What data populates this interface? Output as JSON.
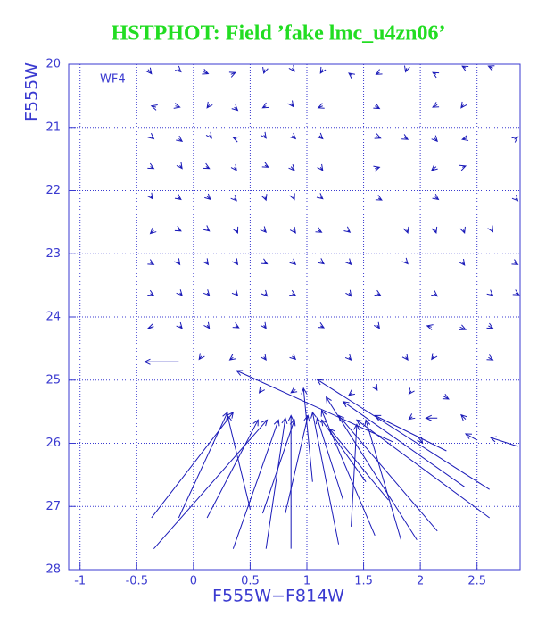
{
  "chart_data": {
    "type": "quiver",
    "title": "HSTPHOT: Field ’fake lmc_u4zn06’",
    "annotation": "WF4",
    "x_label": "F555W−F814W",
    "y_label": "F555W",
    "color": "#1a1ab8",
    "axis_color": "#3a3ad0",
    "title_color": "#22dd22",
    "grid": true,
    "y_inverted": true,
    "xlim": [
      -1.1,
      2.88
    ],
    "ylim": [
      20,
      28
    ],
    "xticks": [
      -1,
      -0.5,
      0,
      0.5,
      1,
      1.5,
      2,
      2.5
    ],
    "yticks": [
      20,
      21,
      22,
      23,
      24,
      25,
      26,
      27,
      28
    ],
    "vectors": [
      [
        -0.37,
        27.18,
        0.35,
        25.51
      ],
      [
        -0.35,
        27.67,
        0.65,
        25.63
      ],
      [
        -0.13,
        27.18,
        0.3,
        25.51
      ],
      [
        0.12,
        27.18,
        0.57,
        25.63
      ],
      [
        0.35,
        27.67,
        0.75,
        25.63
      ],
      [
        0.64,
        27.67,
        0.81,
        25.6
      ],
      [
        0.86,
        27.67,
        0.86,
        25.56
      ],
      [
        0.61,
        27.11,
        0.89,
        25.63
      ],
      [
        0.81,
        27.11,
        1.01,
        25.56
      ],
      [
        1.05,
        26.61,
        0.97,
        25.13
      ],
      [
        1.28,
        27.6,
        1.05,
        25.51
      ],
      [
        1.6,
        27.46,
        1.13,
        25.48
      ],
      [
        1.97,
        27.53,
        1.17,
        25.27
      ],
      [
        2.15,
        27.39,
        1.28,
        25.56
      ],
      [
        2.61,
        27.18,
        1.44,
        25.63
      ],
      [
        2.61,
        26.73,
        1.09,
        24.99
      ],
      [
        2.39,
        26.69,
        1.32,
        25.34
      ],
      [
        2.23,
        26.12,
        1.6,
        25.56
      ],
      [
        2.86,
        26.05,
        2.62,
        25.91
      ],
      [
        1.76,
        25.98,
        0.38,
        24.85
      ],
      [
        1.72,
        26.9,
        1.2,
        25.77
      ],
      [
        1.52,
        26.61,
        1.13,
        25.63
      ],
      [
        1.32,
        26.9,
        1.09,
        25.6
      ],
      [
        1.83,
        27.53,
        1.52,
        25.63
      ],
      [
        1.39,
        27.32,
        1.44,
        25.7
      ],
      [
        -0.13,
        24.71,
        -0.43,
        24.71
      ],
      [
        0.5,
        27.04,
        0.3,
        25.56
      ],
      [
        2.5,
        25.95,
        2.4,
        25.85
      ],
      [
        2.15,
        25.6,
        2.05,
        25.6
      ],
      [
        2.4,
        25.62,
        2.36,
        25.55
      ],
      [
        -0.4,
        20.08,
        -0.37,
        20.15
      ],
      [
        -0.14,
        20.07,
        -0.11,
        20.12
      ],
      [
        0.09,
        20.12,
        0.13,
        20.15
      ],
      [
        0.33,
        20.16,
        0.37,
        20.13
      ],
      [
        0.63,
        20.08,
        0.62,
        20.14
      ],
      [
        0.87,
        20.06,
        0.89,
        20.11
      ],
      [
        1.14,
        20.08,
        1.12,
        20.14
      ],
      [
        1.4,
        20.18,
        1.37,
        20.14
      ],
      [
        1.64,
        20.13,
        1.61,
        20.16
      ],
      [
        1.88,
        20.06,
        1.87,
        20.12
      ],
      [
        2.14,
        20.16,
        2.11,
        20.13
      ],
      [
        2.4,
        20.06,
        2.37,
        20.03
      ],
      [
        2.64,
        20.06,
        2.6,
        20.03
      ],
      [
        -0.33,
        20.68,
        -0.37,
        20.66
      ],
      [
        -0.16,
        20.66,
        -0.12,
        20.68
      ],
      [
        0.14,
        20.64,
        0.12,
        20.69
      ],
      [
        0.36,
        20.68,
        0.39,
        20.73
      ],
      [
        0.64,
        20.66,
        0.61,
        20.69
      ],
      [
        0.86,
        20.62,
        0.88,
        20.67
      ],
      [
        1.14,
        20.66,
        1.1,
        20.69
      ],
      [
        1.6,
        20.66,
        1.64,
        20.7
      ],
      [
        2.15,
        20.64,
        2.11,
        20.68
      ],
      [
        2.38,
        20.64,
        2.36,
        20.69
      ],
      [
        -0.37,
        21.15,
        -0.35,
        21.18
      ],
      [
        -0.13,
        21.18,
        -0.1,
        21.22
      ],
      [
        0.14,
        21.12,
        0.16,
        21.17
      ],
      [
        0.38,
        21.18,
        0.35,
        21.16
      ],
      [
        0.62,
        21.12,
        0.64,
        21.17
      ],
      [
        0.87,
        21.13,
        0.9,
        21.18
      ],
      [
        1.11,
        21.13,
        1.14,
        21.18
      ],
      [
        1.61,
        21.14,
        1.65,
        21.17
      ],
      [
        1.86,
        21.16,
        1.89,
        21.19
      ],
      [
        2.12,
        21.16,
        2.15,
        21.22
      ],
      [
        2.41,
        21.17,
        2.37,
        21.19
      ],
      [
        2.83,
        21.19,
        2.86,
        21.15
      ],
      [
        -0.38,
        21.62,
        -0.35,
        21.65
      ],
      [
        -0.12,
        21.6,
        -0.1,
        21.65
      ],
      [
        0.11,
        21.62,
        0.14,
        21.65
      ],
      [
        0.36,
        21.63,
        0.38,
        21.68
      ],
      [
        0.63,
        21.6,
        0.66,
        21.63
      ],
      [
        0.86,
        21.62,
        0.89,
        21.68
      ],
      [
        1.12,
        21.63,
        1.14,
        21.68
      ],
      [
        1.6,
        21.65,
        1.64,
        21.63
      ],
      [
        2.14,
        21.62,
        2.1,
        21.68
      ],
      [
        2.37,
        21.63,
        2.4,
        21.61
      ],
      [
        -0.38,
        22.08,
        -0.36,
        22.13
      ],
      [
        -0.14,
        22.1,
        -0.11,
        22.14
      ],
      [
        0.12,
        22.09,
        0.15,
        22.14
      ],
      [
        0.36,
        22.12,
        0.38,
        22.16
      ],
      [
        0.63,
        22.1,
        0.64,
        22.15
      ],
      [
        0.88,
        22.1,
        0.89,
        22.14
      ],
      [
        1.12,
        22.1,
        1.14,
        22.13
      ],
      [
        1.63,
        22.12,
        1.66,
        22.15
      ],
      [
        2.13,
        22.1,
        2.16,
        22.14
      ],
      [
        2.84,
        22.12,
        2.86,
        22.16
      ],
      [
        -0.35,
        22.63,
        -0.38,
        22.68
      ],
      [
        -0.13,
        22.62,
        -0.11,
        22.64
      ],
      [
        0.12,
        22.61,
        0.14,
        22.64
      ],
      [
        0.38,
        22.63,
        0.39,
        22.67
      ],
      [
        0.62,
        22.62,
        0.64,
        22.66
      ],
      [
        0.88,
        22.62,
        0.9,
        22.67
      ],
      [
        1.1,
        22.63,
        1.13,
        22.66
      ],
      [
        1.36,
        22.63,
        1.38,
        22.66
      ],
      [
        1.88,
        22.62,
        1.89,
        22.67
      ],
      [
        2.13,
        22.62,
        2.14,
        22.67
      ],
      [
        2.38,
        22.62,
        2.39,
        22.67
      ],
      [
        2.63,
        22.62,
        2.64,
        22.65
      ],
      [
        -0.38,
        23.14,
        -0.35,
        23.17
      ],
      [
        -0.14,
        23.12,
        -0.12,
        23.17
      ],
      [
        0.11,
        23.12,
        0.13,
        23.17
      ],
      [
        0.37,
        23.12,
        0.39,
        23.17
      ],
      [
        0.62,
        23.13,
        0.65,
        23.16
      ],
      [
        0.87,
        23.12,
        0.9,
        23.17
      ],
      [
        1.12,
        23.12,
        1.15,
        23.16
      ],
      [
        1.37,
        23.13,
        1.39,
        23.17
      ],
      [
        1.87,
        23.12,
        1.89,
        23.16
      ],
      [
        2.37,
        23.13,
        2.39,
        23.18
      ],
      [
        2.83,
        23.14,
        2.86,
        23.17
      ],
      [
        -0.38,
        23.63,
        -0.35,
        23.66
      ],
      [
        -0.12,
        23.62,
        -0.1,
        23.66
      ],
      [
        0.12,
        23.62,
        0.14,
        23.66
      ],
      [
        0.37,
        23.62,
        0.39,
        23.66
      ],
      [
        0.63,
        23.63,
        0.65,
        23.67
      ],
      [
        0.87,
        23.63,
        0.9,
        23.66
      ],
      [
        1.37,
        23.62,
        1.39,
        23.67
      ],
      [
        1.62,
        23.63,
        1.65,
        23.66
      ],
      [
        2.12,
        23.63,
        2.15,
        23.67
      ],
      [
        2.62,
        23.63,
        2.64,
        23.66
      ],
      [
        2.84,
        23.62,
        2.87,
        23.65
      ],
      [
        -0.35,
        24.15,
        -0.4,
        24.18
      ],
      [
        -0.12,
        24.14,
        -0.1,
        24.18
      ],
      [
        0.12,
        24.13,
        0.14,
        24.18
      ],
      [
        0.37,
        24.14,
        0.4,
        24.17
      ],
      [
        0.62,
        24.13,
        0.64,
        24.18
      ],
      [
        1.12,
        24.14,
        1.15,
        24.17
      ],
      [
        1.62,
        24.13,
        1.64,
        24.18
      ],
      [
        2.1,
        24.16,
        2.06,
        24.14
      ],
      [
        2.35,
        24.16,
        2.4,
        24.2
      ],
      [
        2.6,
        24.14,
        2.64,
        24.18
      ],
      [
        0.07,
        24.62,
        0.05,
        24.67
      ],
      [
        0.35,
        24.64,
        0.32,
        24.68
      ],
      [
        0.62,
        24.63,
        0.64,
        24.68
      ],
      [
        0.87,
        24.62,
        0.9,
        24.67
      ],
      [
        1.37,
        24.64,
        1.39,
        24.68
      ],
      [
        1.87,
        24.63,
        1.89,
        24.68
      ],
      [
        2.12,
        24.62,
        2.1,
        24.67
      ],
      [
        2.6,
        24.64,
        2.64,
        24.68
      ],
      [
        0.6,
        25.15,
        0.58,
        25.2
      ],
      [
        0.9,
        25.15,
        0.86,
        25.2
      ],
      [
        1.4,
        25.2,
        1.37,
        25.24
      ],
      [
        1.6,
        25.1,
        1.62,
        25.16
      ],
      [
        1.92,
        25.17,
        1.9,
        25.22
      ],
      [
        2.2,
        25.25,
        2.25,
        25.3
      ],
      [
        1.93,
        25.58,
        1.9,
        25.62
      ],
      [
        1.98,
        25.9,
        2.02,
        26.0
      ]
    ]
  }
}
